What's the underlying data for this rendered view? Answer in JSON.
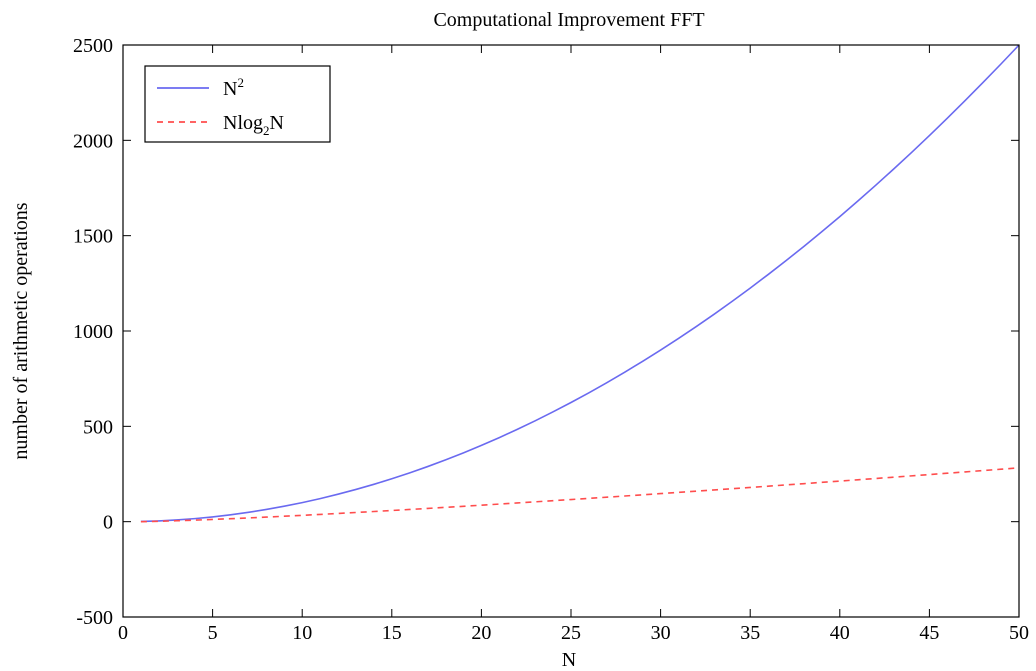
{
  "chart_data": {
    "type": "line",
    "title": "Computational Improvement FFT",
    "xlabel": "N",
    "ylabel": "number of arithmetic operations",
    "xlim": [
      0,
      50
    ],
    "ylim": [
      -500,
      2500
    ],
    "xticks": [
      "0",
      "5",
      "10",
      "15",
      "20",
      "25",
      "30",
      "35",
      "40",
      "45",
      "50"
    ],
    "yticks": [
      "-500",
      "0",
      "500",
      "1000",
      "1500",
      "2000",
      "2500"
    ],
    "grid": false,
    "legend_position": "top-left",
    "series": [
      {
        "name": "N",
        "name_sup": "2",
        "name_sub": "",
        "name_tail": "",
        "color": "#6a6af0",
        "style": "solid",
        "x": [
          1,
          2,
          3,
          4,
          5,
          6,
          7,
          8,
          9,
          10,
          11,
          12,
          13,
          14,
          15,
          16,
          17,
          18,
          19,
          20,
          21,
          22,
          23,
          24,
          25,
          26,
          27,
          28,
          29,
          30,
          31,
          32,
          33,
          34,
          35,
          36,
          37,
          38,
          39,
          40,
          41,
          42,
          43,
          44,
          45,
          46,
          47,
          48,
          49,
          50
        ],
        "y": [
          1,
          4,
          9,
          16,
          25,
          36,
          49,
          64,
          81,
          100,
          121,
          144,
          169,
          196,
          225,
          256,
          289,
          324,
          361,
          400,
          441,
          484,
          529,
          576,
          625,
          676,
          729,
          784,
          841,
          900,
          961,
          1024,
          1089,
          1156,
          1225,
          1296,
          1369,
          1444,
          1521,
          1600,
          1681,
          1764,
          1849,
          1936,
          2025,
          2116,
          2209,
          2304,
          2401,
          2500
        ]
      },
      {
        "name": "Nlog",
        "name_sup": "",
        "name_sub": "2",
        "name_tail": "N",
        "color": "#ff4d4d",
        "style": "dashed",
        "x": [
          1,
          2,
          3,
          4,
          5,
          6,
          7,
          8,
          9,
          10,
          11,
          12,
          13,
          14,
          15,
          16,
          17,
          18,
          19,
          20,
          21,
          22,
          23,
          24,
          25,
          26,
          27,
          28,
          29,
          30,
          31,
          32,
          33,
          34,
          35,
          36,
          37,
          38,
          39,
          40,
          41,
          42,
          43,
          44,
          45,
          46,
          47,
          48,
          49,
          50
        ],
        "y": [
          0,
          2,
          4.75,
          8,
          11.61,
          15.51,
          19.65,
          24,
          28.53,
          33.22,
          38.05,
          43.02,
          48.11,
          53.3,
          58.6,
          64,
          69.49,
          75.06,
          80.71,
          86.44,
          92.24,
          98.11,
          104.04,
          110.04,
          116.1,
          122.21,
          128.38,
          134.6,
          140.88,
          147.21,
          153.58,
          160,
          166.46,
          172.97,
          179.52,
          186.12,
          192.75,
          199.42,
          206.14,
          212.88,
          219.66,
          226.48,
          233.33,
          240.21,
          247.13,
          254.09,
          261.07,
          268.08,
          275.13,
          282.19
        ]
      }
    ]
  }
}
